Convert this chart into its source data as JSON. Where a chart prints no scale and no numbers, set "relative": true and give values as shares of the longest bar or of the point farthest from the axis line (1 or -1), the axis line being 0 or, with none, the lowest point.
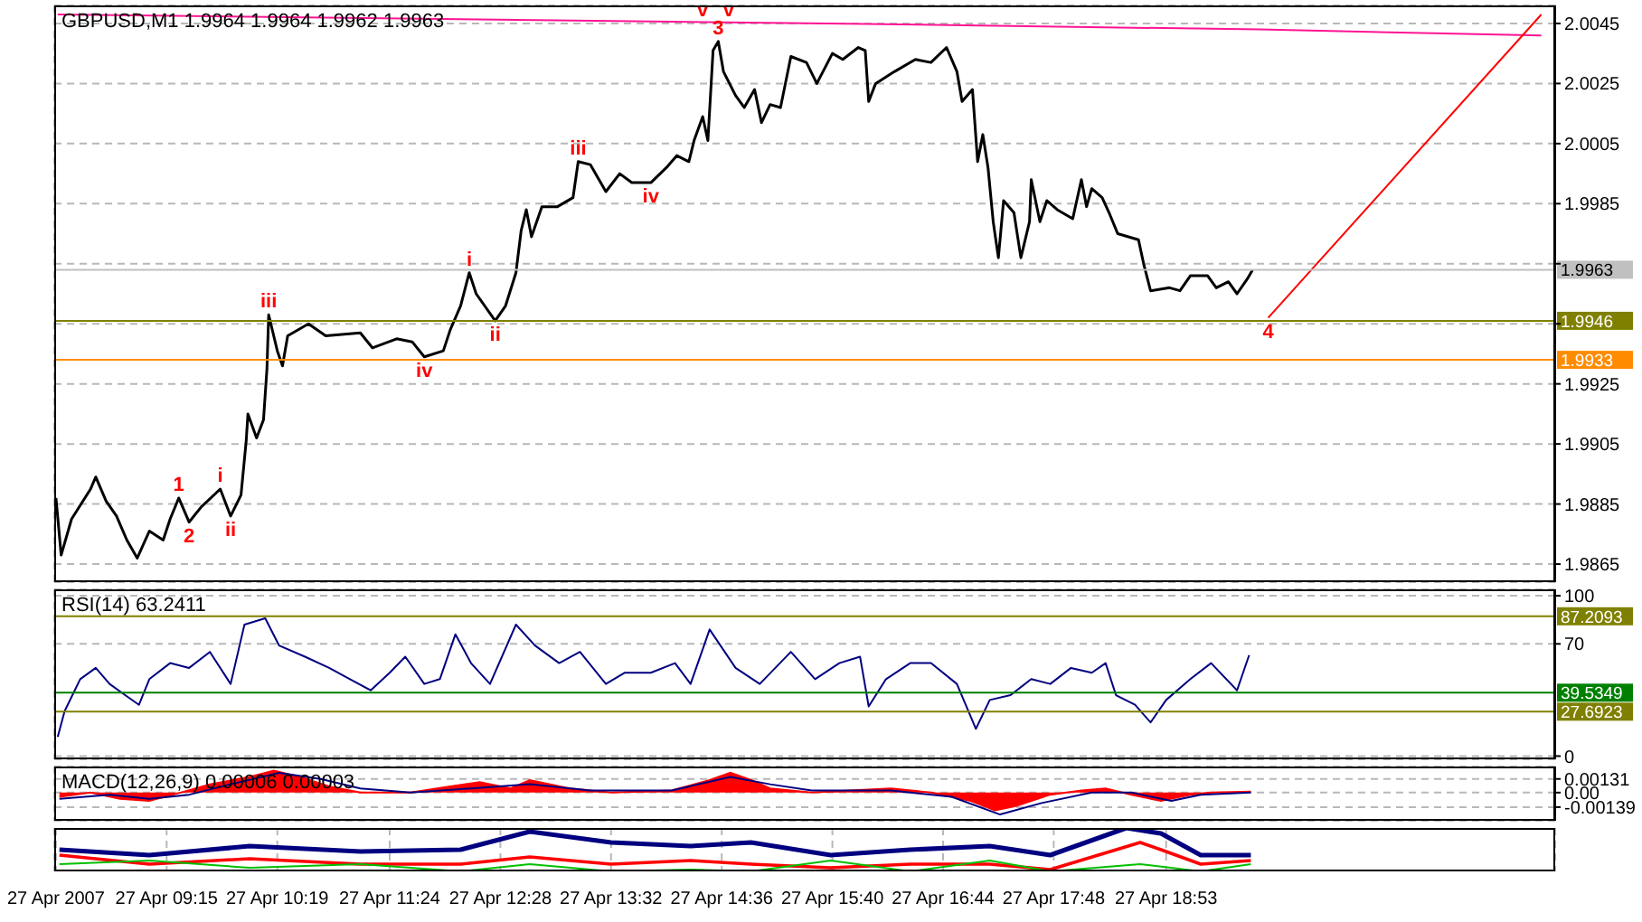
{
  "chart_data": [
    {
      "type": "line",
      "title": "GBPUSD,M1 1.9964 1.9964 1.9962 1.9963",
      "xlim": [
        "2007-04-27T08:10",
        "2007-04-27T22:38"
      ],
      "xticks": [
        {
          "value": "2007-04-27T08:11",
          "label": null
        },
        {
          "value": "2007-04-27T09:15",
          "label": null
        },
        {
          "value": "2007-04-27T10:19",
          "label": null
        },
        {
          "value": "2007-04-27T11:24",
          "label": null
        },
        {
          "value": "2007-04-27T12:28",
          "label": null
        },
        {
          "value": "2007-04-27T13:32",
          "label": null
        },
        {
          "value": "2007-04-27T14:36",
          "label": null
        },
        {
          "value": "2007-04-27T15:40",
          "label": null
        },
        {
          "value": "2007-04-27T16:44",
          "label": null
        },
        {
          "value": "2007-04-27T17:48",
          "label": null
        },
        {
          "value": "2007-04-27T18:53",
          "label": null
        }
      ],
      "ylim": [
        1.9859,
        2.0051
      ],
      "yticks": [
        1.9865,
        1.9885,
        1.9905,
        1.9925,
        {
          "value": 1.9945,
          "label": null
        },
        {
          "value": 1.9965,
          "label": null
        },
        1.9985,
        2.0005,
        2.0025,
        2.0045
      ],
      "tick_labels": "y",
      "grid": true,
      "series": [
        {
          "color": "#000000",
          "x": [
            "2007-04-27T08:11",
            "2007-04-27T08:14",
            "2007-04-27T08:20",
            "2007-04-27T08:31",
            "2007-04-27T08:34",
            "2007-04-27T08:40",
            "2007-04-27T08:46",
            "2007-04-27T08:52",
            "2007-04-27T08:58",
            "2007-04-27T09:05",
            "2007-04-27T09:13",
            "2007-04-27T09:17",
            "2007-04-27T09:22",
            "2007-04-27T09:28",
            "2007-04-27T09:35",
            "2007-04-27T09:46",
            "2007-04-27T09:52",
            "2007-04-27T09:58",
            "2007-04-27T10:01",
            "2007-04-27T10:02",
            "2007-04-27T10:07",
            "2007-04-27T10:11",
            "2007-04-27T10:13",
            "2007-04-27T10:14",
            "2007-04-27T10:19",
            "2007-04-27T10:22",
            "2007-04-27T10:25",
            "2007-04-27T10:37",
            "2007-04-27T10:47",
            "2007-04-27T11:07",
            "2007-04-27T11:14",
            "2007-04-27T11:28",
            "2007-04-27T11:37",
            "2007-04-27T11:44",
            "2007-04-27T11:55",
            "2007-04-27T11:59",
            "2007-04-27T12:05",
            "2007-04-27T12:10",
            "2007-04-27T12:14",
            "2007-04-27T12:25",
            "2007-04-27T12:31",
            "2007-04-27T12:37",
            "2007-04-27T12:40",
            "2007-04-27T12:43",
            "2007-04-27T12:46",
            "2007-04-27T12:52",
            "2007-04-27T13:01",
            "2007-04-27T13:10",
            "2007-04-27T13:13",
            "2007-04-27T13:20",
            "2007-04-27T13:29",
            "2007-04-27T13:37",
            "2007-04-27T13:44",
            "2007-04-27T13:55",
            "2007-04-27T14:04",
            "2007-04-27T14:10",
            "2007-04-27T14:17",
            "2007-04-27T14:20",
            "2007-04-27T14:25",
            "2007-04-27T14:28",
            "2007-04-27T14:31",
            "2007-04-27T14:34",
            "2007-04-27T14:37",
            "2007-04-27T14:44",
            "2007-04-27T14:49",
            "2007-04-27T14:55",
            "2007-04-27T14:59",
            "2007-04-27T15:04",
            "2007-04-27T15:10",
            "2007-04-27T15:16",
            "2007-04-27T15:25",
            "2007-04-27T15:31",
            "2007-04-27T15:40",
            "2007-04-27T15:46",
            "2007-04-27T15:55",
            "2007-04-27T15:59",
            "2007-04-27T16:01",
            "2007-04-27T16:05",
            "2007-04-27T16:16",
            "2007-04-27T16:28",
            "2007-04-27T16:37",
            "2007-04-27T16:46",
            "2007-04-27T16:52",
            "2007-04-27T16:55",
            "2007-04-27T17:01",
            "2007-04-27T17:04",
            "2007-04-27T17:07",
            "2007-04-27T17:10",
            "2007-04-27T17:13",
            "2007-04-27T17:16",
            "2007-04-27T17:19",
            "2007-04-27T17:25",
            "2007-04-27T17:29",
            "2007-04-27T17:34",
            "2007-04-27T17:35",
            "2007-04-27T17:40",
            "2007-04-27T17:44",
            "2007-04-27T17:50",
            "2007-04-27T17:59",
            "2007-04-27T18:04",
            "2007-04-27T18:07",
            "2007-04-27T18:10",
            "2007-04-27T18:16",
            "2007-04-27T18:20",
            "2007-04-27T18:25",
            "2007-04-27T18:37",
            "2007-04-27T18:40",
            "2007-04-27T18:44",
            "2007-04-27T18:55",
            "2007-04-27T19:01",
            "2007-04-27T19:07",
            "2007-04-27T19:17",
            "2007-04-27T19:22",
            "2007-04-27T19:29",
            "2007-04-27T19:34",
            "2007-04-27T19:40",
            "2007-04-27T19:43"
          ],
          "values": [
            1.9887,
            1.9868,
            1.988,
            1.989,
            1.9894,
            1.9886,
            1.9881,
            1.9873,
            1.9867,
            1.9876,
            1.9873,
            1.988,
            1.9887,
            1.9879,
            1.9884,
            1.989,
            1.9881,
            1.9888,
            1.9906,
            1.9915,
            1.9907,
            1.9913,
            1.993,
            1.9948,
            1.9936,
            1.9931,
            1.9941,
            1.9945,
            1.9941,
            1.9942,
            1.9937,
            1.994,
            1.9939,
            1.9934,
            1.9936,
            1.9943,
            1.9951,
            1.9962,
            1.9955,
            1.9946,
            1.9951,
            1.9962,
            1.9976,
            1.9983,
            1.9974,
            1.9984,
            1.9984,
            1.9987,
            1.9999,
            1.9998,
            1.9989,
            1.9995,
            1.9992,
            1.9992,
            1.9997,
            2.0001,
            1.9999,
            2.0006,
            2.0014,
            2.0006,
            2.0036,
            2.0039,
            2.0029,
            2.0021,
            2.0017,
            2.0023,
            2.0012,
            2.0018,
            2.0017,
            2.0034,
            2.0032,
            2.0025,
            2.0035,
            2.0033,
            2.0037,
            2.0036,
            2.0019,
            2.0025,
            2.0029,
            2.0033,
            2.0032,
            2.0037,
            2.0029,
            2.0019,
            2.0023,
            1.9999,
            2.0008,
            1.9997,
            1.9979,
            1.9967,
            1.9986,
            1.9982,
            1.9967,
            1.9979,
            1.9993,
            1.9979,
            1.9986,
            1.9983,
            1.998,
            1.9993,
            1.9984,
            1.999,
            1.9987,
            1.9982,
            1.9975,
            1.9973,
            1.9965,
            1.9956,
            1.9957,
            1.9956,
            1.9961,
            1.9961,
            1.9957,
            1.9959,
            1.9955,
            1.996,
            1.9963
          ]
        },
        {
          "color": "#ff1493",
          "x": [
            "2007-04-27T08:12",
            "2007-04-27T15:37",
            "2007-04-27T19:47",
            "2007-04-27T22:30"
          ],
          "values": [
            2.0048,
            2.0045,
            2.0043,
            2.0041
          ]
        },
        {
          "color": "#ff0000",
          "x": [
            "2007-04-27T19:52",
            "2007-04-27T22:30"
          ],
          "values": [
            1.9947,
            2.0048
          ]
        }
      ],
      "ref_lines": [
        {
          "axis": "y",
          "value": 1.9963,
          "label": "1.9963",
          "color": "#c0c0c0"
        },
        {
          "axis": "y",
          "value": 1.9946,
          "label": "1.9946",
          "color": "#808000"
        },
        {
          "axis": "y",
          "value": 1.9933,
          "label": "1.9933",
          "color": "#ff8c00"
        }
      ],
      "annotations": [
        {
          "text": "1",
          "x": "2007-04-27T09:22",
          "y": 1.9887
        },
        {
          "text": "2",
          "x": "2007-04-27T09:28",
          "y": 1.9879
        },
        {
          "text": "i",
          "x": "2007-04-27T09:46",
          "y": 1.989
        },
        {
          "text": "ii",
          "x": "2007-04-27T09:52",
          "y": 1.9881
        },
        {
          "text": "iii",
          "x": "2007-04-27T10:14",
          "y": 1.9948
        },
        {
          "text": "iv",
          "x": "2007-04-27T11:44",
          "y": 1.9934
        },
        {
          "text": "i",
          "x": "2007-04-27T12:10",
          "y": 1.9962
        },
        {
          "text": "ii",
          "x": "2007-04-27T12:25",
          "y": 1.9946
        },
        {
          "text": "iii",
          "x": "2007-04-27T13:13",
          "y": 1.9999
        },
        {
          "text": "iv",
          "x": "2007-04-27T13:55",
          "y": 1.9992
        },
        {
          "text": "3",
          "x": "2007-04-27T14:34",
          "y": 2.0039
        },
        {
          "text": "v",
          "x": "2007-04-27T14:25",
          "y": 2.0045
        },
        {
          "text": "v",
          "x": "2007-04-27T14:40",
          "y": 2.0045
        },
        {
          "text": "4",
          "x": "2007-04-27T19:52",
          "y": 1.9947
        }
      ]
    },
    {
      "type": "line",
      "title": "RSI(14) 63.2411",
      "xlim": [
        "2007-04-27T08:10",
        "2007-04-27T22:38"
      ],
      "xticks": [
        {
          "value": "2007-04-27T08:11",
          "label": null
        },
        {
          "value": "2007-04-27T09:15",
          "label": null
        },
        {
          "value": "2007-04-27T10:19",
          "label": null
        },
        {
          "value": "2007-04-27T11:24",
          "label": null
        },
        {
          "value": "2007-04-27T12:28",
          "label": null
        },
        {
          "value": "2007-04-27T13:32",
          "label": null
        },
        {
          "value": "2007-04-27T14:36",
          "label": null
        },
        {
          "value": "2007-04-27T15:40",
          "label": null
        },
        {
          "value": "2007-04-27T16:44",
          "label": null
        },
        {
          "value": "2007-04-27T17:48",
          "label": null
        },
        {
          "value": "2007-04-27T18:53",
          "label": null
        }
      ],
      "ylim": [
        -2,
        104
      ],
      "yticks": [
        0,
        70,
        100
      ],
      "tick_labels": "y",
      "grid": true,
      "series": [
        {
          "color": "#000080",
          "x": [
            "2007-04-27T08:12",
            "2007-04-27T08:16",
            "2007-04-27T08:25",
            "2007-04-27T08:34",
            "2007-04-27T08:42",
            "2007-04-27T08:51",
            "2007-04-27T08:59",
            "2007-04-27T09:05",
            "2007-04-27T09:17",
            "2007-04-27T09:28",
            "2007-04-27T09:40",
            "2007-04-27T09:52",
            "2007-04-27T10:00",
            "2007-04-27T10:12",
            "2007-04-27T10:20",
            "2007-04-27T10:35",
            "2007-04-27T10:49",
            "2007-04-27T11:01",
            "2007-04-27T11:13",
            "2007-04-27T11:24",
            "2007-04-27T11:33",
            "2007-04-27T11:44",
            "2007-04-27T11:53",
            "2007-04-27T12:02",
            "2007-04-27T12:11",
            "2007-04-27T12:22",
            "2007-04-27T12:37",
            "2007-04-27T12:48",
            "2007-04-27T13:02",
            "2007-04-27T13:14",
            "2007-04-27T13:29",
            "2007-04-27T13:40",
            "2007-04-27T13:55",
            "2007-04-27T14:09",
            "2007-04-27T14:18",
            "2007-04-27T14:29",
            "2007-04-27T14:44",
            "2007-04-27T14:58",
            "2007-04-27T15:16",
            "2007-04-27T15:30",
            "2007-04-27T15:44",
            "2007-04-27T15:56",
            "2007-04-27T16:01",
            "2007-04-27T16:11",
            "2007-04-27T16:25",
            "2007-04-27T16:37",
            "2007-04-27T16:52",
            "2007-04-27T17:03",
            "2007-04-27T17:11",
            "2007-04-27T17:23",
            "2007-04-27T17:35",
            "2007-04-27T17:46",
            "2007-04-27T17:58",
            "2007-04-27T18:10",
            "2007-04-27T18:18",
            "2007-04-27T18:24",
            "2007-04-27T18:35",
            "2007-04-27T18:44",
            "2007-04-27T18:53",
            "2007-04-27T19:07",
            "2007-04-27T19:19",
            "2007-04-27T19:34",
            "2007-04-27T19:41"
          ],
          "values": [
            12,
            28,
            48,
            55,
            45,
            38,
            32,
            48,
            58,
            55,
            65,
            45,
            82,
            86,
            69,
            62,
            55,
            48,
            41,
            52,
            62,
            45,
            48,
            76,
            58,
            45,
            82,
            69,
            58,
            65,
            45,
            52,
            52,
            58,
            45,
            79,
            55,
            45,
            65,
            48,
            58,
            62,
            31,
            48,
            58,
            58,
            45,
            17,
            35,
            38,
            48,
            45,
            55,
            52,
            58,
            38,
            32,
            21,
            35,
            48,
            58,
            41,
            63
          ]
        }
      ],
      "ref_lines": [
        {
          "axis": "y",
          "value": 87.2093,
          "label": "87.2093",
          "color": "#808000"
        },
        {
          "axis": "y",
          "value": 39.5349,
          "label": "39.5349",
          "color": "#008000"
        },
        {
          "axis": "y",
          "value": 27.6923,
          "label": "27.6923",
          "color": "#808000"
        }
      ]
    },
    {
      "type": "line",
      "title": "MACD(12,26,9) 0.00006 0.00003",
      "xlim": [
        "2007-04-27T08:10",
        "2007-04-27T22:38"
      ],
      "xticks": [
        {
          "value": "2007-04-27T08:11",
          "label": null
        },
        {
          "value": "2007-04-27T09:15",
          "label": null
        },
        {
          "value": "2007-04-27T10:19",
          "label": null
        },
        {
          "value": "2007-04-27T11:24",
          "label": null
        },
        {
          "value": "2007-04-27T12:28",
          "label": null
        },
        {
          "value": "2007-04-27T13:32",
          "label": null
        },
        {
          "value": "2007-04-27T14:36",
          "label": null
        },
        {
          "value": "2007-04-27T15:40",
          "label": null
        },
        {
          "value": "2007-04-27T16:44",
          "label": null
        },
        {
          "value": "2007-04-27T17:48",
          "label": null
        },
        {
          "value": "2007-04-27T18:53",
          "label": null
        }
      ],
      "ylim": [
        -0.0027,
        0.0025
      ],
      "yticks": [
        -0.00139,
        {
          "value": 0,
          "label": "0.00"
        },
        0.00131
      ],
      "tick_labels": "y",
      "grid": true,
      "series": [
        {
          "type": "area",
          "color": "#ff0000",
          "x": [
            "2007-04-27T08:13",
            "2007-04-27T08:31",
            "2007-04-27T08:48",
            "2007-04-27T09:05",
            "2007-04-27T09:23",
            "2007-04-27T09:40",
            "2007-04-27T10:03",
            "2007-04-27T10:17",
            "2007-04-27T10:32",
            "2007-04-27T10:49",
            "2007-04-27T11:07",
            "2007-04-27T11:36",
            "2007-04-27T11:59",
            "2007-04-27T12:16",
            "2007-04-27T12:34",
            "2007-04-27T12:45",
            "2007-04-27T13:08",
            "2007-04-27T13:32",
            "2007-04-27T14:07",
            "2007-04-27T14:29",
            "2007-04-27T14:41",
            "2007-04-27T14:53",
            "2007-04-27T15:04",
            "2007-04-27T15:28",
            "2007-04-27T15:50",
            "2007-04-27T16:14",
            "2007-04-27T16:37",
            "2007-04-27T17:00",
            "2007-04-27T17:14",
            "2007-04-27T17:26",
            "2007-04-27T17:46",
            "2007-04-27T18:04",
            "2007-04-27T18:18",
            "2007-04-27T18:33",
            "2007-04-27T18:50",
            "2007-04-27T19:07",
            "2007-04-27T19:19",
            "2007-04-27T19:42"
          ],
          "values": [
            -0.0004,
            0,
            -0.0006,
            -0.0008,
            0,
            0.0008,
            0.0015,
            0.0021,
            0.0015,
            0.0006,
            0,
            0,
            0.0006,
            0.001,
            0.0004,
            0.0012,
            0.0004,
            0,
            0.0002,
            0.0012,
            0.0019,
            0.0012,
            0.0004,
            0,
            0.0002,
            0.0004,
            0,
            -0.0008,
            -0.0017,
            -0.0013,
            -0.0002,
            0.0002,
            0.0004,
            -0.0002,
            -0.0008,
            -0.0002,
            0,
            0.0001
          ]
        },
        {
          "color": "#000080",
          "x": [
            "2007-04-27T08:13",
            "2007-04-27T08:42",
            "2007-04-27T09:05",
            "2007-04-27T09:28",
            "2007-04-27T09:52",
            "2007-04-27T10:20",
            "2007-04-27T10:44",
            "2007-04-27T11:07",
            "2007-04-27T11:36",
            "2007-04-27T12:11",
            "2007-04-27T12:45",
            "2007-04-27T13:20",
            "2007-04-27T14:07",
            "2007-04-27T14:41",
            "2007-04-27T15:04",
            "2007-04-27T15:28",
            "2007-04-27T16:14",
            "2007-04-27T16:49",
            "2007-04-27T17:17",
            "2007-04-27T17:41",
            "2007-04-27T18:10",
            "2007-04-27T18:33",
            "2007-04-27T18:56",
            "2007-04-27T19:13",
            "2007-04-27T19:42"
          ],
          "values": [
            -0.0006,
            -0.0002,
            -0.0006,
            -0.0002,
            0.0008,
            0.0019,
            0.0013,
            0.0004,
            0,
            0.0004,
            0.0008,
            0.0002,
            0.0002,
            0.0015,
            0.0008,
            0.0002,
            0.0002,
            -0.0004,
            -0.0021,
            -0.001,
            0,
            0,
            -0.0008,
            -0.0002,
            0
          ]
        }
      ]
    },
    {
      "type": "line",
      "relative": true,
      "xlim": [
        "2007-04-27T08:10",
        "2007-04-27T22:38"
      ],
      "xticks": [
        {
          "value": "2007-04-27T08:11",
          "label": "27 Apr 2007"
        },
        {
          "value": "2007-04-27T09:15",
          "label": "27 Apr 09:15"
        },
        {
          "value": "2007-04-27T10:19",
          "label": "27 Apr 10:19"
        },
        {
          "value": "2007-04-27T11:24",
          "label": "27 Apr 11:24"
        },
        {
          "value": "2007-04-27T12:28",
          "label": "27 Apr 12:28"
        },
        {
          "value": "2007-04-27T13:32",
          "label": "27 Apr 13:32"
        },
        {
          "value": "2007-04-27T14:36",
          "label": "27 Apr 14:36"
        },
        {
          "value": "2007-04-27T15:40",
          "label": "27 Apr 15:40"
        },
        {
          "value": "2007-04-27T16:44",
          "label": "27 Apr 16:44"
        },
        {
          "value": "2007-04-27T17:48",
          "label": "27 Apr 17:48"
        },
        {
          "value": "2007-04-27T18:53",
          "label": "27 Apr 18:53"
        }
      ],
      "tick_labels": "x",
      "grid": "x",
      "series": [
        {
          "color": "#000080",
          "x": [
            "2007-04-27T08:13",
            "2007-04-27T09:05",
            "2007-04-27T10:03",
            "2007-04-27T11:07",
            "2007-04-27T12:05",
            "2007-04-27T12:45",
            "2007-04-27T13:32",
            "2007-04-27T14:18",
            "2007-04-27T14:53",
            "2007-04-27T15:39",
            "2007-04-27T16:25",
            "2007-04-27T17:11",
            "2007-04-27T17:46",
            "2007-04-27T18:30",
            "2007-04-27T18:50",
            "2007-04-27T19:13",
            "2007-04-27T19:42"
          ],
          "values": [
            0.5,
            0.375,
            0.583,
            0.458,
            0.5,
            0.917,
            0.667,
            0.583,
            0.667,
            0.375,
            0.5,
            0.583,
            0.375,
            1,
            0.875,
            0.375,
            0.375
          ]
        },
        {
          "color": "#ff0000",
          "x": [
            "2007-04-27T08:13",
            "2007-04-27T09:05",
            "2007-04-27T10:03",
            "2007-04-27T11:07",
            "2007-04-27T12:05",
            "2007-04-27T12:45",
            "2007-04-27T13:32",
            "2007-04-27T14:18",
            "2007-04-27T14:53",
            "2007-04-27T15:39",
            "2007-04-27T16:25",
            "2007-04-27T17:11",
            "2007-04-27T17:46",
            "2007-04-27T18:38",
            "2007-04-27T18:50",
            "2007-04-27T19:13",
            "2007-04-27T19:42"
          ],
          "values": [
            0.375,
            0.167,
            0.292,
            0.167,
            0.167,
            0.333,
            0.167,
            0.25,
            0.167,
            0.083,
            0.167,
            0.167,
            0.042,
            0.667,
            0.5,
            0.167,
            0.25
          ]
        },
        {
          "color": "#00c000",
          "x": [
            "2007-04-27T08:13",
            "2007-04-27T09:05",
            "2007-04-27T10:03",
            "2007-04-27T11:07",
            "2007-04-27T12:05",
            "2007-04-27T12:45",
            "2007-04-27T13:32",
            "2007-04-27T14:18",
            "2007-04-27T14:53",
            "2007-04-27T15:39",
            "2007-04-27T16:25",
            "2007-04-27T17:11",
            "2007-04-27T17:46",
            "2007-04-27T18:38",
            "2007-04-27T19:13",
            "2007-04-27T19:42"
          ],
          "values": [
            0.167,
            0.25,
            0.083,
            0.167,
            0,
            0.167,
            0,
            0.042,
            0,
            0.25,
            0,
            0.25,
            0,
            0.167,
            0,
            0.167
          ]
        }
      ]
    }
  ]
}
